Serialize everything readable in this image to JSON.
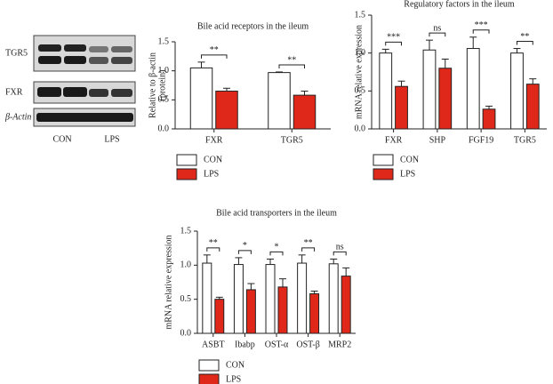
{
  "blot": {
    "rows": [
      "TGR5",
      "FXR",
      "β-Actin"
    ],
    "lanes": [
      "CON",
      "LPS"
    ]
  },
  "chart_data": [
    {
      "type": "bar",
      "title": "Bile acid receptors in the ileum",
      "y_label": [
        "Relative to β-actin",
        "(protein)"
      ],
      "categories": [
        "FXR",
        "TGR5"
      ],
      "series": [
        {
          "name": "CON",
          "color": "#ffffff",
          "values": [
            1.05,
            0.97
          ],
          "errors": [
            0.1,
            0.01
          ]
        },
        {
          "name": "LPS",
          "color": "#e0281a",
          "values": [
            0.65,
            0.58
          ],
          "errors": [
            0.05,
            0.07
          ]
        }
      ],
      "significance": [
        "**",
        "**"
      ],
      "ylim": [
        0,
        1.5
      ],
      "yticks": [
        {
          "value": 0,
          "label": "0.0"
        },
        {
          "value": 0.5,
          "label": "0.5"
        },
        {
          "value": 1,
          "label": "1.0"
        },
        {
          "value": 1.5,
          "label": "1.5"
        }
      ],
      "legend": "bottom-left"
    },
    {
      "type": "bar",
      "title": "Regulatory factors in the ileum",
      "y_label": "mRNA relative expression",
      "categories": [
        "FXR",
        "SHP",
        "FGF19",
        "TGR5"
      ],
      "series": [
        {
          "name": "CON",
          "color": "#ffffff",
          "values": [
            1.0,
            1.04,
            1.06,
            1.0
          ],
          "errors": [
            0.05,
            0.13,
            0.15,
            0.06
          ]
        },
        {
          "name": "LPS",
          "color": "#e0281a",
          "values": [
            0.56,
            0.8,
            0.26,
            0.59
          ],
          "errors": [
            0.07,
            0.12,
            0.04,
            0.07
          ]
        }
      ],
      "significance": [
        "***",
        "ns",
        "***",
        "**"
      ],
      "ylim": [
        0,
        1.5
      ],
      "yticks": [
        {
          "value": 0,
          "label": "0.0"
        },
        {
          "value": 0.5,
          "label": "0.5"
        },
        {
          "value": 1,
          "label": "1.0"
        },
        {
          "value": 1.5,
          "label": "1.5"
        }
      ],
      "legend": "bottom-left"
    },
    {
      "type": "bar",
      "title": "Bile acid transporters in the ileum",
      "y_label": "mRNA relative expression",
      "categories": [
        "ASBT",
        "Ibabp",
        "OST-α",
        "OST-β",
        "MRP2"
      ],
      "series": [
        {
          "name": "CON",
          "color": "#ffffff",
          "values": [
            1.03,
            1.01,
            1.01,
            1.03,
            1.02
          ],
          "errors": [
            0.12,
            0.1,
            0.08,
            0.12,
            0.07
          ]
        },
        {
          "name": "LPS",
          "color": "#e0281a",
          "values": [
            0.5,
            0.64,
            0.68,
            0.58,
            0.84
          ],
          "errors": [
            0.03,
            0.09,
            0.12,
            0.04,
            0.12
          ]
        }
      ],
      "significance": [
        "**",
        "*",
        "*",
        "**",
        "ns"
      ],
      "ylim": [
        0,
        1.5
      ],
      "yticks": [
        {
          "value": 0,
          "label": "0.0"
        },
        {
          "value": 0.5,
          "label": "0.5"
        },
        {
          "value": 1,
          "label": "1.0"
        },
        {
          "value": 1.5,
          "label": "1.5"
        }
      ],
      "legend": "bottom-left"
    }
  ]
}
